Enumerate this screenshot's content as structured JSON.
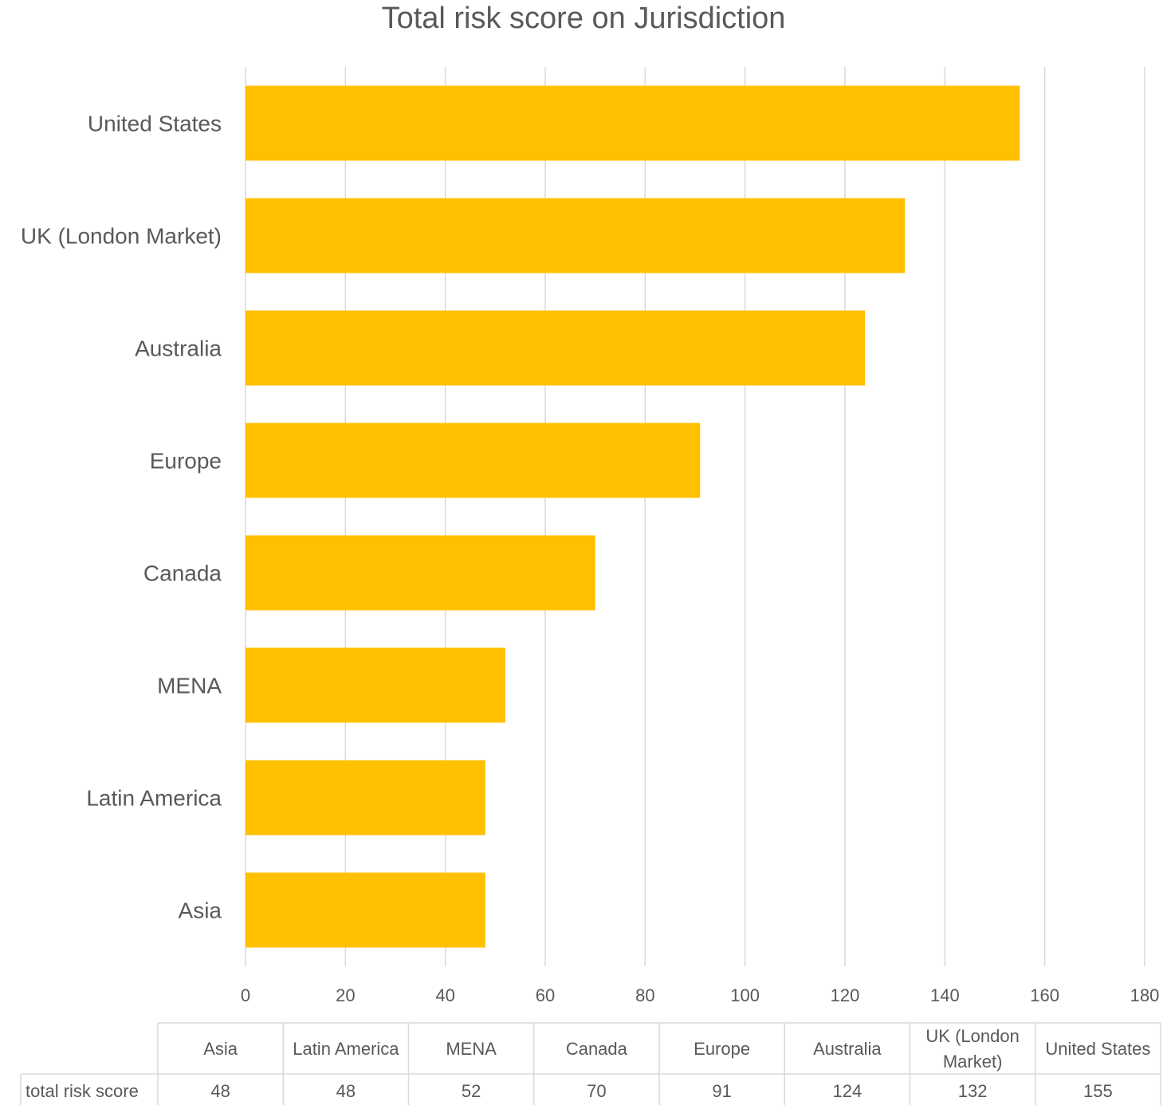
{
  "chart_data": {
    "type": "bar",
    "orientation": "horizontal",
    "title": "Total risk score on Jurisdiction",
    "xlabel": "",
    "ylabel": "",
    "categories": [
      "Asia",
      "Latin America",
      "MENA",
      "Canada",
      "Europe",
      "Australia",
      "UK (London Market)",
      "United States"
    ],
    "table_headers": [
      "Asia",
      "Latin America",
      "MENA",
      "Canada",
      "Europe",
      "Australia",
      [
        "UK (London",
        "Market)"
      ],
      "United States"
    ],
    "series": [
      {
        "name": "total risk score",
        "values": [
          48,
          48,
          52,
          70,
          91,
          124,
          132,
          155
        ],
        "color": "#FFC000"
      }
    ],
    "xlim": [
      0,
      180
    ],
    "xticks": [
      0,
      20,
      40,
      60,
      80,
      100,
      120,
      140,
      160,
      180
    ],
    "grid": true,
    "grid_color": "#D9D9D9",
    "legend": "none",
    "data_table": true
  }
}
